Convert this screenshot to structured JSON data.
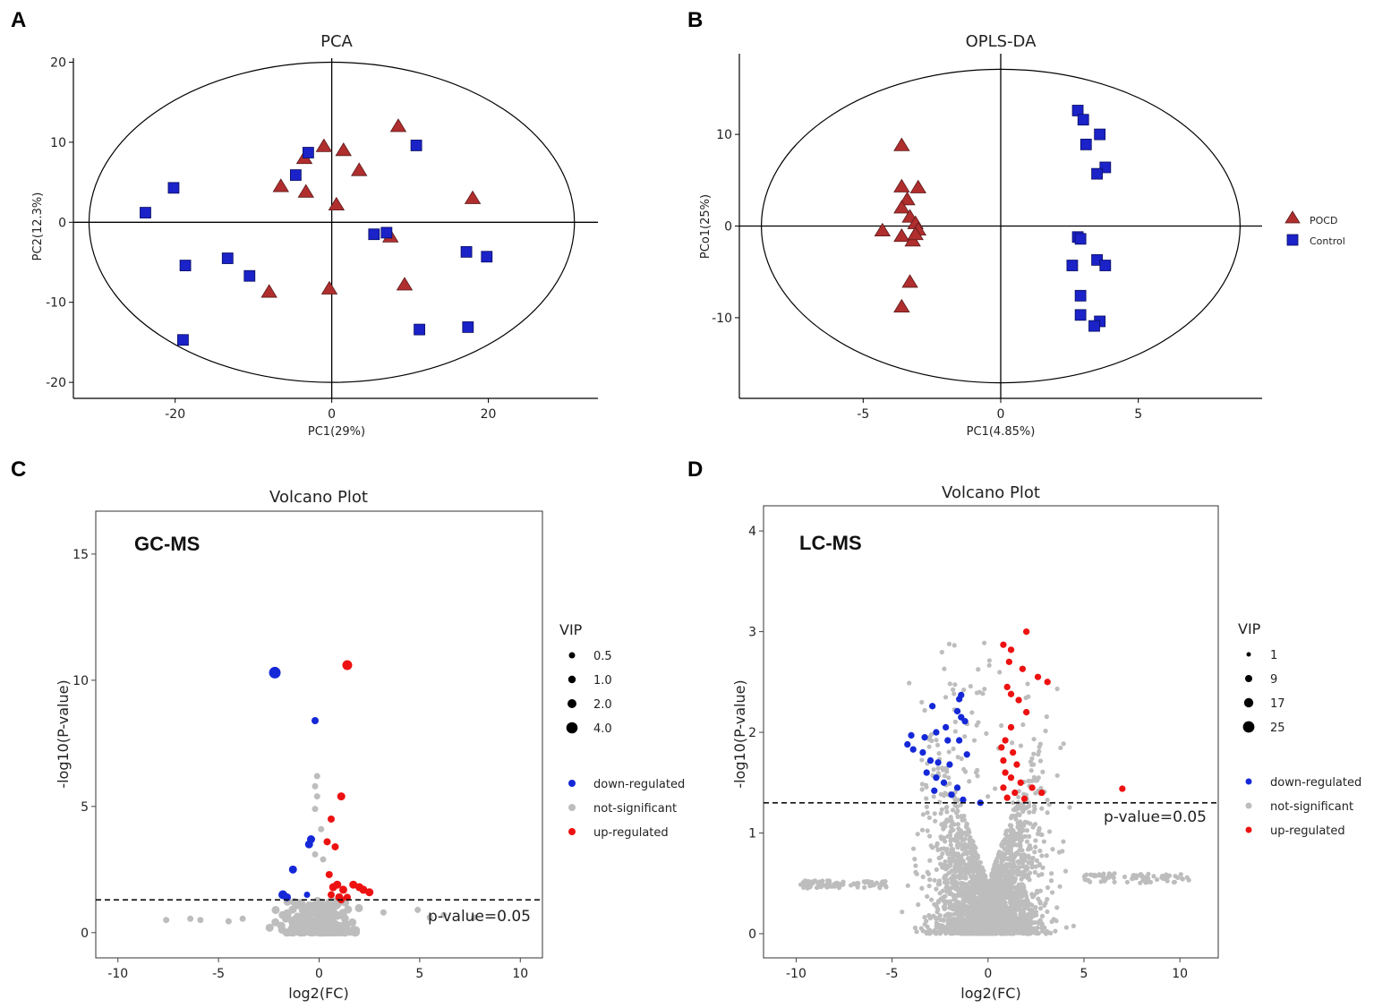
{
  "panels": {
    "a": "A",
    "b": "B",
    "c": "C",
    "d": "D"
  },
  "colors": {
    "tri": "#b02e2e",
    "sq": "#1a22c8",
    "down": "#1528d8",
    "ns": "#bdbdbd",
    "up": "#ee1111"
  },
  "legend_ab": {
    "pocd": "POCD",
    "control": "Control"
  },
  "legend_cd": {
    "title": "VIP",
    "down": "down-regulated",
    "ns": "not-significant",
    "up": "up-regulated"
  },
  "pval_label": "p-value=0.05",
  "chart_data": [
    {
      "type": "scatter",
      "title": "PCA",
      "xlabel": "PC1(29%)",
      "ylabel": "PC2(12.3%)",
      "xlim": [
        -33,
        34
      ],
      "ylim": [
        -22,
        20.5
      ],
      "xticks": [
        -20,
        0,
        20
      ],
      "yticks": [
        20,
        10,
        0,
        -10,
        -20
      ],
      "grid": false,
      "ellipse": {
        "rx": 31,
        "ry": 20
      },
      "series": [
        {
          "name": "POCD",
          "marker": "triangle",
          "points": [
            [
              -1,
              9.5
            ],
            [
              1.5,
              9
            ],
            [
              -3.5,
              8
            ],
            [
              8.5,
              12
            ],
            [
              3.5,
              6.5
            ],
            [
              -6.5,
              4.5
            ],
            [
              -3.3,
              3.8
            ],
            [
              0.6,
              2.2
            ],
            [
              18,
              3
            ],
            [
              7.5,
              -1.8
            ],
            [
              9.3,
              -7.8
            ],
            [
              -8,
              -8.7
            ],
            [
              -0.3,
              -8.3
            ]
          ]
        },
        {
          "name": "Control",
          "marker": "square",
          "points": [
            [
              -3,
              8.7
            ],
            [
              10.8,
              9.6
            ],
            [
              -4.6,
              5.9
            ],
            [
              -20.2,
              4.3
            ],
            [
              -23.8,
              1.2
            ],
            [
              5.4,
              -1.5
            ],
            [
              7,
              -1.3
            ],
            [
              -13.3,
              -4.5
            ],
            [
              -18.7,
              -5.4
            ],
            [
              17.2,
              -3.7
            ],
            [
              19.8,
              -4.3
            ],
            [
              -10.5,
              -6.7
            ],
            [
              -19,
              -14.7
            ],
            [
              11.2,
              -13.4
            ],
            [
              17.4,
              -13.1
            ]
          ]
        }
      ]
    },
    {
      "type": "scatter",
      "title": "OPLS-DA",
      "xlabel": "PC1(4.85%)",
      "ylabel": "PCo1(25%)",
      "xlim": [
        -9.5,
        9.5
      ],
      "ylim": [
        -18.8,
        18.8
      ],
      "xticks": [
        -5,
        0,
        5
      ],
      "yticks": [
        10,
        0,
        -10
      ],
      "grid": false,
      "ellipse": {
        "rx": 8.7,
        "ry": 17.1
      },
      "series": [
        {
          "name": "POCD",
          "marker": "triangle",
          "points": [
            [
              -3.6,
              8.8
            ],
            [
              -3.6,
              4.3
            ],
            [
              -3.0,
              4.2
            ],
            [
              -3.4,
              2.9
            ],
            [
              -3.6,
              2.0
            ],
            [
              -3.3,
              1.0
            ],
            [
              -3.1,
              0.3
            ],
            [
              -3.0,
              -0.4
            ],
            [
              -4.3,
              -0.5
            ],
            [
              -3.6,
              -1.1
            ],
            [
              -3.2,
              -1.6
            ],
            [
              -3.3,
              -6.1
            ],
            [
              -3.6,
              -8.8
            ],
            [
              -3.1,
              -0.9
            ]
          ]
        },
        {
          "name": "Control",
          "marker": "square",
          "points": [
            [
              2.8,
              12.6
            ],
            [
              3.0,
              11.6
            ],
            [
              3.6,
              10.0
            ],
            [
              3.1,
              8.9
            ],
            [
              3.8,
              6.4
            ],
            [
              3.5,
              5.7
            ],
            [
              2.8,
              -1.2
            ],
            [
              2.9,
              -1.4
            ],
            [
              3.5,
              -3.7
            ],
            [
              2.6,
              -4.3
            ],
            [
              3.8,
              -4.3
            ],
            [
              2.9,
              -7.6
            ],
            [
              2.9,
              -9.7
            ],
            [
              3.6,
              -10.4
            ],
            [
              3.4,
              -10.9
            ]
          ]
        }
      ]
    },
    {
      "type": "scatter",
      "title": "Volcano Plot",
      "annotation": "GC-MS",
      "xlabel": "log2(FC)",
      "ylabel": "-log10(P-value)",
      "xlim": [
        -11.1,
        11.1
      ],
      "ylim": [
        -1.0,
        16.7
      ],
      "xticks": [
        -10,
        -5,
        0,
        5,
        10
      ],
      "yticks": [
        15,
        10,
        5,
        0
      ],
      "threshold": 1.3,
      "vip_legend": [
        "0.5",
        "1.0",
        "2.0",
        "4.0"
      ],
      "series": [
        {
          "name": "down-regulated",
          "points": [
            [
              -2.2,
              10.3,
              4.0
            ],
            [
              -0.2,
              8.4,
              1.5
            ],
            [
              -0.4,
              3.7,
              2.0
            ],
            [
              -0.5,
              3.5,
              2.0
            ],
            [
              -1.3,
              2.5,
              2.0
            ],
            [
              -1.8,
              1.5,
              2.5
            ],
            [
              -1.6,
              1.4,
              2.0
            ],
            [
              -0.6,
              1.5,
              1.0
            ]
          ]
        },
        {
          "name": "up-regulated",
          "points": [
            [
              1.4,
              10.6,
              3.0
            ],
            [
              1.1,
              5.4,
              2.0
            ],
            [
              0.6,
              4.5,
              1.5
            ],
            [
              0.4,
              3.6,
              1.5
            ],
            [
              0.8,
              3.4,
              1.5
            ],
            [
              0.5,
              2.3,
              1.5
            ],
            [
              0.7,
              1.8,
              2.0
            ],
            [
              0.9,
              1.9,
              2.0
            ],
            [
              1.2,
              1.7,
              2.0
            ],
            [
              0.6,
              1.5,
              1.5
            ],
            [
              1.0,
              1.4,
              2.0
            ],
            [
              1.7,
              1.9,
              2.0
            ],
            [
              2.0,
              1.8,
              2.0
            ],
            [
              2.2,
              1.7,
              2.0
            ],
            [
              2.5,
              1.6,
              2.0
            ],
            [
              1.4,
              1.4,
              1.5
            ],
            [
              1.1,
              1.3,
              1.5
            ]
          ]
        },
        {
          "name": "not-significant",
          "points": [
            [
              -0.1,
              6.2,
              1.0
            ],
            [
              -0.2,
              5.8,
              1.0
            ],
            [
              -0.1,
              5.4,
              1.0
            ],
            [
              -0.2,
              4.9,
              1.0
            ],
            [
              0.1,
              4.1,
              1.0
            ],
            [
              -0.2,
              3.1,
              1.0
            ],
            [
              0.2,
              2.9,
              1.0
            ],
            [
              -7.6,
              0.5,
              1.0
            ],
            [
              -6.4,
              0.55,
              1.0
            ],
            [
              -5.9,
              0.5,
              1.0
            ],
            [
              -4.5,
              0.45,
              1.0
            ],
            [
              -3.8,
              0.55,
              1.0
            ],
            [
              6.2,
              0.7,
              1.0
            ],
            [
              7.7,
              0.6,
              1.0
            ],
            [
              5.5,
              0.6,
              1.0
            ],
            [
              4.9,
              0.9,
              1.0
            ],
            [
              3.2,
              0.8,
              1.0
            ]
          ]
        }
      ]
    },
    {
      "type": "scatter",
      "title": "Volcano Plot",
      "annotation": "LC-MS",
      "xlabel": "log2(FC)",
      "ylabel": "-log10(P-value)",
      "xlim": [
        -11.7,
        12.0
      ],
      "ylim": [
        -0.24,
        4.25
      ],
      "xticks": [
        -10,
        -5,
        0,
        5,
        10
      ],
      "yticks": [
        4,
        3,
        2,
        1,
        0
      ],
      "threshold": 1.3,
      "vip_legend": [
        "1",
        "9",
        "17",
        "25"
      ],
      "series": [
        {
          "name": "down-regulated",
          "points": [
            [
              -1.4,
              2.37,
              9
            ],
            [
              -1.5,
              2.33,
              9
            ],
            [
              -2.9,
              2.26,
              9
            ],
            [
              -1.6,
              2.21,
              9
            ],
            [
              -1.4,
              2.15,
              9
            ],
            [
              -1.2,
              2.11,
              9
            ],
            [
              -2.2,
              2.05,
              9
            ],
            [
              -2.7,
              2.0,
              9
            ],
            [
              -4.0,
              1.97,
              9
            ],
            [
              -3.3,
              1.95,
              9
            ],
            [
              -2.1,
              1.92,
              9
            ],
            [
              -1.5,
              1.92,
              9
            ],
            [
              -4.2,
              1.88,
              9
            ],
            [
              -3.9,
              1.83,
              9
            ],
            [
              -3.4,
              1.8,
              9
            ],
            [
              -1.1,
              1.78,
              9
            ],
            [
              -3.0,
              1.72,
              9
            ],
            [
              -2.6,
              1.7,
              9
            ],
            [
              -2.0,
              1.68,
              9
            ],
            [
              -3.2,
              1.6,
              9
            ],
            [
              -2.7,
              1.55,
              9
            ],
            [
              -2.3,
              1.5,
              9
            ],
            [
              -1.6,
              1.45,
              9
            ],
            [
              -2.8,
              1.42,
              9
            ],
            [
              -1.9,
              1.38,
              9
            ],
            [
              -1.3,
              1.33,
              9
            ],
            [
              -0.4,
              1.3,
              9
            ]
          ]
        },
        {
          "name": "up-regulated",
          "points": [
            [
              0.8,
              2.87,
              9
            ],
            [
              2.0,
              3.0,
              9
            ],
            [
              1.2,
              2.82,
              9
            ],
            [
              1.1,
              2.7,
              9
            ],
            [
              1.8,
              2.63,
              9
            ],
            [
              2.6,
              2.55,
              9
            ],
            [
              1.0,
              2.45,
              9
            ],
            [
              3.1,
              2.5,
              9
            ],
            [
              1.2,
              2.38,
              9
            ],
            [
              1.6,
              2.32,
              9
            ],
            [
              2.0,
              2.2,
              9
            ],
            [
              1.2,
              2.05,
              9
            ],
            [
              0.9,
              1.92,
              9
            ],
            [
              0.7,
              1.85,
              9
            ],
            [
              1.3,
              1.8,
              9
            ],
            [
              0.8,
              1.72,
              9
            ],
            [
              1.5,
              1.68,
              9
            ],
            [
              0.9,
              1.6,
              9
            ],
            [
              1.2,
              1.55,
              9
            ],
            [
              1.7,
              1.5,
              9
            ],
            [
              2.3,
              1.45,
              9
            ],
            [
              0.8,
              1.45,
              9
            ],
            [
              1.4,
              1.4,
              9
            ],
            [
              2.8,
              1.4,
              9
            ],
            [
              1.0,
              1.35,
              9
            ],
            [
              1.9,
              1.34,
              9
            ],
            [
              7.0,
              1.44,
              9
            ]
          ]
        },
        {
          "name": "not-significant",
          "points": []
        }
      ]
    }
  ]
}
